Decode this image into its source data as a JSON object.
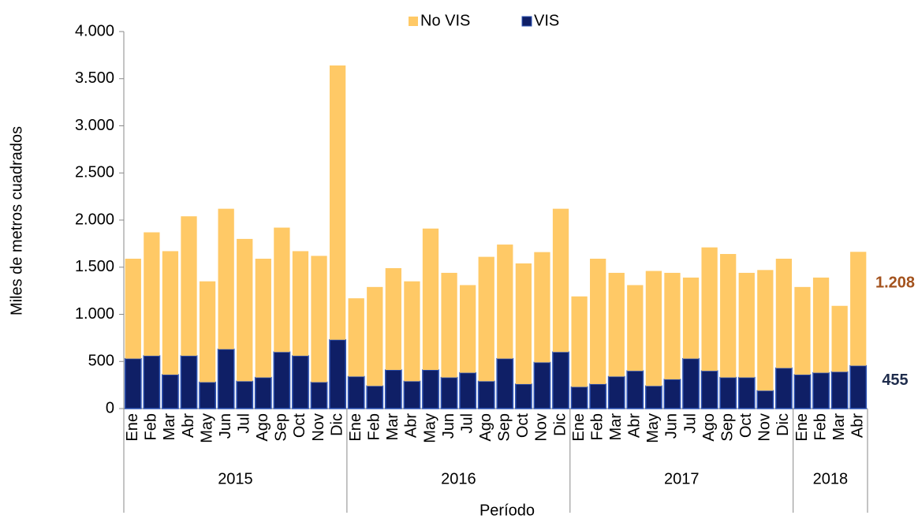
{
  "chart_data": {
    "type": "stacked_bar",
    "y_label": "Miles de metros cuadrados",
    "x_label": "Período",
    "categories": [
      "Ene",
      "Feb",
      "Mar",
      "Abr",
      "May",
      "Jun",
      "Jul",
      "Ago",
      "Sep",
      "Oct",
      "Nov",
      "Dic",
      "Ene",
      "Feb",
      "Mar",
      "Abr",
      "May",
      "Jun",
      "Jul",
      "Ago",
      "Sep",
      "Oct",
      "Nov",
      "Dic",
      "Ene",
      "Feb",
      "Mar",
      "Abr",
      "May",
      "Jun",
      "Jul",
      "Ago",
      "Sep",
      "Oct",
      "Nov",
      "Dic",
      "Ene",
      "Feb",
      "Mar",
      "Abr"
    ],
    "x_groups": [
      "2015",
      "2016",
      "2017",
      "2018"
    ],
    "series": [
      {
        "name": "No VIS",
        "color": "#ffc966",
        "values": [
          1060,
          1310,
          1310,
          1480,
          1070,
          1490,
          1510,
          1260,
          1320,
          1110,
          1340,
          2910,
          830,
          1050,
          1080,
          1060,
          1500,
          1110,
          930,
          1320,
          1210,
          1280,
          1170,
          1520,
          960,
          1330,
          1100,
          910,
          1220,
          1130,
          860,
          1310,
          1310,
          1110,
          1280,
          1160,
          930,
          1010,
          700,
          1208
        ],
        "value_labels": [
          null,
          null,
          null,
          null,
          null,
          null,
          null,
          null,
          null,
          null,
          null,
          null,
          null,
          null,
          null,
          null,
          null,
          null,
          null,
          null,
          null,
          null,
          null,
          null,
          null,
          null,
          null,
          null,
          null,
          null,
          null,
          null,
          null,
          null,
          null,
          null,
          null,
          null,
          null,
          "1.208"
        ]
      },
      {
        "name": "VIS",
        "color": "#0f1f66",
        "values": [
          530,
          560,
          360,
          560,
          280,
          630,
          290,
          330,
          600,
          560,
          280,
          730,
          340,
          240,
          410,
          290,
          410,
          330,
          380,
          290,
          530,
          260,
          490,
          600,
          230,
          260,
          340,
          400,
          240,
          310,
          530,
          400,
          330,
          330,
          190,
          430,
          360,
          380,
          390,
          455
        ],
        "value_labels": [
          null,
          null,
          null,
          null,
          null,
          null,
          null,
          null,
          null,
          null,
          null,
          null,
          null,
          null,
          null,
          null,
          null,
          null,
          null,
          null,
          null,
          null,
          null,
          null,
          null,
          null,
          null,
          null,
          null,
          null,
          null,
          null,
          null,
          null,
          null,
          null,
          null,
          null,
          null,
          "455"
        ]
      }
    ],
    "ylim": [
      0,
      4000
    ],
    "yticks": [
      0,
      500,
      {
        "value": 1000,
        "label": "1.000"
      },
      {
        "value": 1500,
        "label": "1.500"
      },
      {
        "value": 2000,
        "label": "2.000"
      },
      {
        "value": 2500,
        "label": "2.500"
      },
      {
        "value": 3000,
        "label": "3.000"
      },
      {
        "value": 3500,
        "label": "3.500"
      },
      {
        "value": 4000,
        "label": "4.000"
      }
    ],
    "grid": false
  }
}
